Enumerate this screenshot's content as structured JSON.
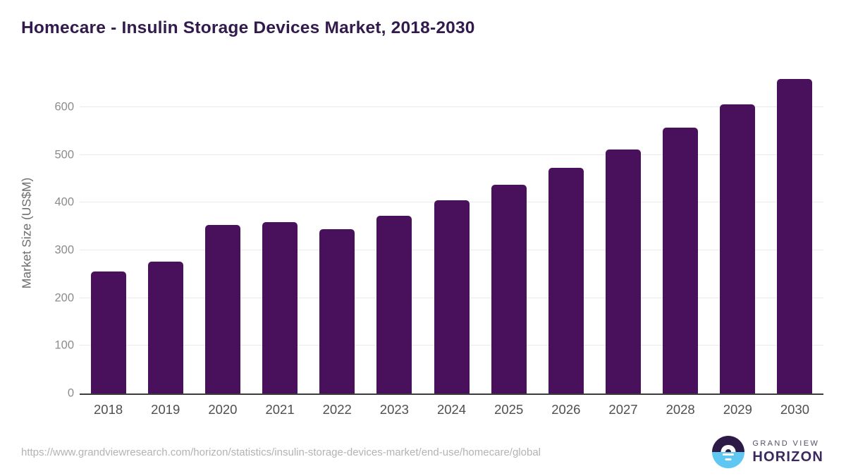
{
  "title": "Homecare - Insulin Storage Devices Market, 2018-2030",
  "chart_data": {
    "type": "bar",
    "title": "Homecare - Insulin Storage Devices Market, 2018-2030",
    "categories": [
      "2018",
      "2019",
      "2020",
      "2021",
      "2022",
      "2023",
      "2024",
      "2025",
      "2026",
      "2027",
      "2028",
      "2029",
      "2030"
    ],
    "values": [
      256,
      277,
      354,
      359,
      345,
      373,
      405,
      437,
      473,
      512,
      558,
      606,
      660
    ],
    "xlabel": "",
    "ylabel": "Market Size (US$M)",
    "ylim": [
      0,
      680
    ],
    "yticks": [
      0,
      100,
      200,
      300,
      400,
      500,
      600
    ],
    "grid": true,
    "legend": false,
    "bar_color": "#49105c"
  },
  "colors": {
    "bar": "#49105c",
    "title_text": "#321b4c",
    "axis_line": "#3c3c3c",
    "gridline": "#e9e9eb",
    "tick_text": "#8c8c8c",
    "x_tick_text": "#4f4f4f",
    "url_text": "#b3b3b3",
    "logo_dark": "#2d1a47",
    "logo_blue": "#5ec7f2"
  },
  "footer": {
    "source_url": "https://www.grandviewresearch.com/horizon/statistics/insulin-storage-devices-market/end-use/homecare/global",
    "logo": {
      "line1": "GRAND VIEW",
      "line2": "HORIZON"
    }
  }
}
